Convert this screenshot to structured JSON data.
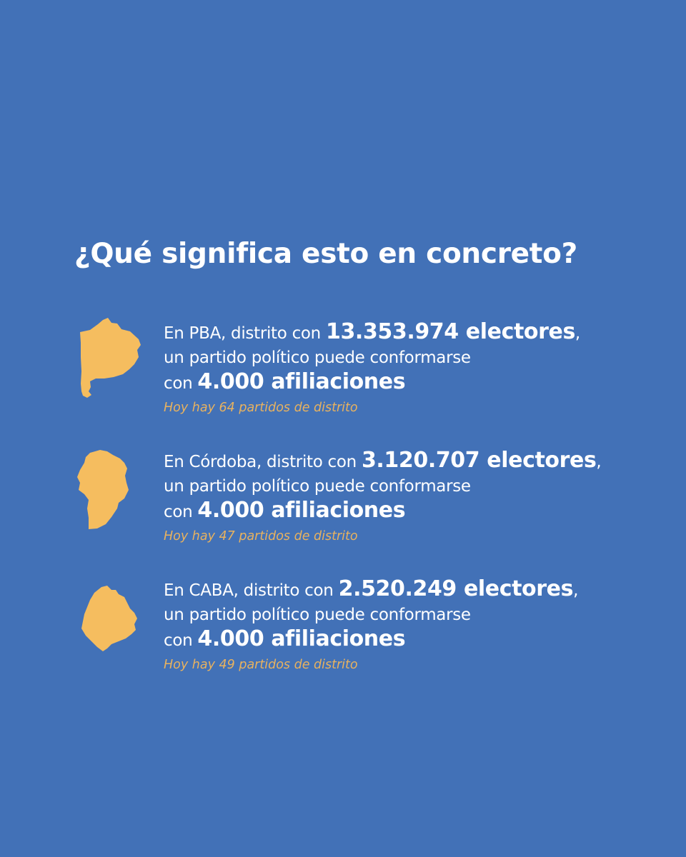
{
  "title": "¿Qué significa esto en concreto?",
  "accent_color": "#f5bd5f",
  "background_color": "#4271b7",
  "districts": [
    {
      "prefix": "En PBA, distrito con ",
      "electors": "13.353.974 electores",
      "suffix": ",",
      "line2": "un partido político puede conformarse",
      "line3_prefix": "con ",
      "affiliations": "4.000 afiliaciones",
      "note": "Hoy hay 64 partidos de distrito",
      "icon": "buenos-aires-province-map-icon"
    },
    {
      "prefix": "En Córdoba, distrito con ",
      "electors": "3.120.707 electores",
      "suffix": ",",
      "line2": "un partido político puede conformarse",
      "line3_prefix": "con ",
      "affiliations": "4.000 afiliaciones",
      "note": "Hoy hay 47 partidos de distrito",
      "icon": "cordoba-province-map-icon"
    },
    {
      "prefix": "En CABA, distrito con ",
      "electors": "2.520.249 electores",
      "suffix": ",",
      "line2": "un partido político puede conformarse",
      "line3_prefix": "con ",
      "affiliations": "4.000 afiliaciones",
      "note": "Hoy hay 49 partidos de distrito",
      "icon": "caba-map-icon"
    }
  ]
}
